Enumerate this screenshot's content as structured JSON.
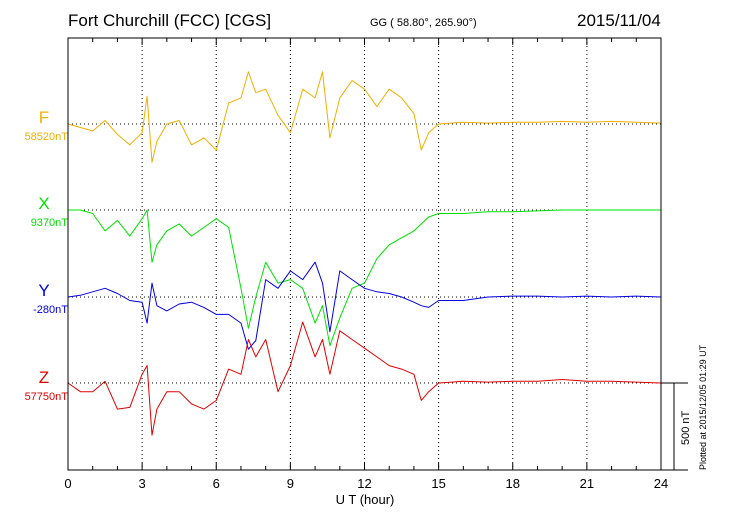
{
  "header": {
    "station": "Fort Churchill (FCC)  [CGS]",
    "coords": "GG ( 58.80°, 265.90°)",
    "date": "2015/11/04"
  },
  "components": [
    {
      "name": "F",
      "baseline": "58520nT",
      "color": "#f0b000"
    },
    {
      "name": "X",
      "baseline": "9370nT",
      "color": "#00e000"
    },
    {
      "name": "Y",
      "baseline": "-280nT",
      "color": "#0000e0"
    },
    {
      "name": "Z",
      "baseline": "57750nT",
      "color": "#e00000"
    }
  ],
  "chart_data": {
    "type": "line",
    "title": "Fort Churchill (FCC)  [CGS]",
    "xlabel": "U T (hour)",
    "xlim": [
      0,
      24
    ],
    "xticks": [
      "0",
      "3",
      "6",
      "9",
      "12",
      "15",
      "18",
      "21",
      "24"
    ],
    "scale_bar": "500 nT",
    "plotted_note": "Plotted at 2015/12/05 01:29 UT",
    "series": [
      {
        "name": "F",
        "baseline_nT": 58520,
        "x": [
          0,
          0.5,
          1,
          1.5,
          2,
          2.5,
          3,
          3.2,
          3.4,
          3.6,
          4,
          4.5,
          5,
          5.5,
          6,
          6.5,
          7,
          7.3,
          7.6,
          8,
          8.5,
          9,
          9.5,
          10,
          10.3,
          10.6,
          11,
          11.5,
          12,
          12.5,
          13,
          13.5,
          14,
          14.3,
          14.6,
          15,
          16,
          17,
          18,
          19,
          20,
          21,
          22,
          23,
          24
        ],
        "values": [
          0,
          -20,
          -40,
          20,
          -60,
          -120,
          -50,
          160,
          -220,
          -100,
          0,
          20,
          -120,
          -80,
          -150,
          120,
          150,
          300,
          180,
          200,
          50,
          -50,
          200,
          150,
          300,
          -80,
          150,
          250,
          200,
          100,
          200,
          150,
          60,
          -150,
          -50,
          0,
          10,
          5,
          10,
          10,
          15,
          10,
          15,
          10,
          5
        ]
      },
      {
        "name": "X",
        "baseline_nT": 9370,
        "x": [
          0,
          0.5,
          1,
          1.5,
          2,
          2.5,
          3,
          3.2,
          3.4,
          3.6,
          4,
          4.5,
          5,
          5.5,
          6,
          6.5,
          7,
          7.3,
          7.6,
          8,
          8.5,
          9,
          9.5,
          10,
          10.3,
          10.6,
          11,
          11.5,
          12,
          12.5,
          13,
          13.5,
          14,
          14.3,
          14.6,
          15,
          16,
          17,
          18,
          19,
          20,
          21,
          22,
          23,
          24
        ],
        "values": [
          0,
          0,
          -20,
          -120,
          -60,
          -150,
          -50,
          0,
          -300,
          -200,
          -120,
          -80,
          -150,
          -100,
          -50,
          -100,
          -450,
          -680,
          -500,
          -300,
          -420,
          -400,
          -450,
          -650,
          -550,
          -780,
          -620,
          -450,
          -420,
          -280,
          -200,
          -160,
          -120,
          -80,
          -40,
          -20,
          -20,
          -10,
          -10,
          -5,
          0,
          0,
          0,
          0,
          0
        ]
      },
      {
        "name": "Y",
        "baseline_nT": -280,
        "x": [
          0,
          0.5,
          1,
          1.5,
          2,
          2.5,
          3,
          3.2,
          3.4,
          3.6,
          4,
          4.5,
          5,
          5.5,
          6,
          6.5,
          7,
          7.3,
          7.6,
          8,
          8.5,
          9,
          9.5,
          10,
          10.3,
          10.6,
          11,
          11.5,
          12,
          12.5,
          13,
          13.5,
          14,
          14.3,
          14.6,
          15,
          16,
          17,
          18,
          19,
          20,
          21,
          22,
          23,
          24
        ],
        "values": [
          0,
          10,
          30,
          50,
          20,
          -20,
          -30,
          -150,
          80,
          -50,
          -80,
          -40,
          -30,
          -60,
          -100,
          -100,
          -150,
          -300,
          -250,
          100,
          50,
          150,
          100,
          200,
          80,
          -200,
          150,
          100,
          50,
          30,
          20,
          0,
          -30,
          -50,
          -60,
          -20,
          -20,
          0,
          5,
          5,
          0,
          5,
          0,
          5,
          0
        ]
      },
      {
        "name": "Z",
        "baseline_nT": 57750,
        "x": [
          0,
          0.5,
          1,
          1.5,
          2,
          2.5,
          3,
          3.2,
          3.4,
          3.6,
          4,
          4.5,
          5,
          5.5,
          6,
          6.5,
          7,
          7.3,
          7.6,
          8,
          8.5,
          9,
          9.5,
          10,
          10.3,
          10.6,
          11,
          11.5,
          12,
          12.5,
          13,
          13.5,
          14,
          14.3,
          14.6,
          15,
          16,
          17,
          18,
          19,
          20,
          21,
          22,
          23,
          24
        ],
        "values": [
          0,
          -50,
          -50,
          10,
          -150,
          -140,
          50,
          100,
          -300,
          -150,
          -50,
          -50,
          -120,
          -150,
          -100,
          80,
          50,
          250,
          150,
          250,
          -50,
          100,
          350,
          150,
          250,
          50,
          300,
          250,
          200,
          150,
          100,
          80,
          50,
          -100,
          -50,
          0,
          10,
          5,
          10,
          10,
          20,
          10,
          10,
          5,
          0
        ]
      }
    ]
  }
}
